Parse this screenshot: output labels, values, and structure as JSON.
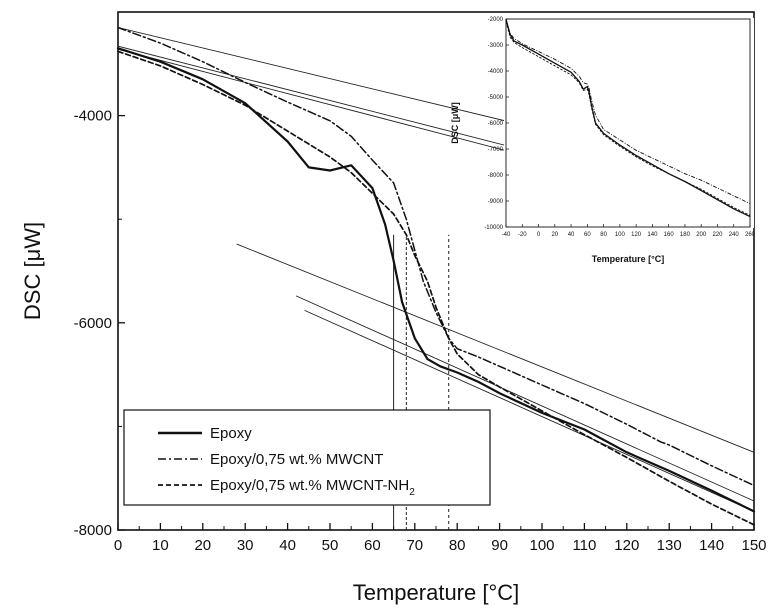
{
  "chart_data": [
    {
      "type": "line",
      "title": "",
      "xlabel": "Temperature [°C]",
      "ylabel": "DSC [μW]",
      "xlim": [
        0,
        150
      ],
      "ylim": [
        -8000,
        -3000
      ],
      "x_ticks": [
        "0",
        "10",
        "20",
        "30",
        "40",
        "50",
        "60",
        "70",
        "80",
        "90",
        "100",
        "110",
        "120",
        "130",
        "140",
        "150"
      ],
      "y_ticks": [
        "-4000",
        "-6000",
        "-8000"
      ],
      "grid": false,
      "legend_position": "bottom-left",
      "series": [
        {
          "name": "Epoxy",
          "style": "solid",
          "x": [
            0,
            10,
            20,
            30,
            40,
            45,
            50,
            55,
            60,
            63,
            65,
            67,
            70,
            73,
            76,
            80,
            85,
            90,
            100,
            110,
            120,
            130,
            140,
            150
          ],
          "y": [
            -3350,
            -3480,
            -3650,
            -3880,
            -4250,
            -4500,
            -4530,
            -4480,
            -4700,
            -5050,
            -5400,
            -5800,
            -6150,
            -6350,
            -6420,
            -6480,
            -6570,
            -6680,
            -6870,
            -7030,
            -7250,
            -7430,
            -7620,
            -7820
          ]
        },
        {
          "name": "Epoxy/0,75 wt.% MWCNT",
          "style": "dash-dot",
          "x": [
            0,
            10,
            20,
            30,
            40,
            50,
            55,
            60,
            65,
            68,
            70,
            72,
            75,
            78,
            80,
            85,
            90,
            100,
            110,
            120,
            128,
            130,
            140,
            150
          ],
          "y": [
            -3150,
            -3300,
            -3480,
            -3680,
            -3870,
            -4050,
            -4200,
            -4430,
            -4650,
            -5000,
            -5300,
            -5600,
            -5900,
            -6150,
            -6250,
            -6330,
            -6420,
            -6600,
            -6780,
            -6980,
            -7150,
            -7180,
            -7380,
            -7570
          ]
        },
        {
          "name": "Epoxy/0,75 wt.% MWCNT-NH2",
          "style": "dashed",
          "x": [
            0,
            10,
            20,
            30,
            40,
            50,
            55,
            60,
            65,
            68,
            70,
            73,
            75,
            78,
            80,
            85,
            90,
            100,
            110,
            120,
            130,
            140,
            150
          ],
          "y": [
            -3380,
            -3520,
            -3700,
            -3900,
            -4150,
            -4400,
            -4550,
            -4750,
            -4950,
            -5150,
            -5350,
            -5600,
            -5850,
            -6150,
            -6300,
            -6500,
            -6620,
            -6850,
            -7080,
            -7300,
            -7530,
            -7750,
            -7950
          ]
        }
      ],
      "tangent_lines": [
        {
          "x": [
            0,
            145
          ],
          "y": [
            -3330,
            -4850
          ]
        },
        {
          "x": [
            0,
            145
          ],
          "y": [
            -3150,
            -4580
          ]
        },
        {
          "x": [
            0,
            145
          ],
          "y": [
            -3360,
            -4910
          ]
        },
        {
          "x": [
            28,
            150
          ],
          "y": [
            -5240,
            -7250
          ]
        },
        {
          "x": [
            42,
            150
          ],
          "y": [
            -5740,
            -7720
          ]
        },
        {
          "x": [
            44,
            150
          ],
          "y": [
            -5880,
            -7820
          ]
        }
      ],
      "vertical_markers": [
        65,
        68,
        78
      ],
      "legend": {
        "items": [
          {
            "label": "Epoxy",
            "style": "solid"
          },
          {
            "label": "Epoxy/0,75 wt.% MWCNT",
            "style": "dash-dot"
          },
          {
            "label_main": "Epoxy/0,75 wt.% MWCNT-NH",
            "label_sub": "2",
            "style": "dashed"
          }
        ]
      }
    },
    {
      "type": "line",
      "title": "",
      "xlabel": "Temperature [°C]",
      "ylabel": "DSC [μW]",
      "xlim": [
        -40,
        260
      ],
      "ylim": [
        -10000,
        -2000
      ],
      "x_ticks": [
        "-40",
        "-20",
        "0",
        "20",
        "40",
        "60",
        "80",
        "100",
        "120",
        "140",
        "160",
        "180",
        "200",
        "220",
        "240",
        "260"
      ],
      "y_ticks": [
        "-2000",
        "-3000",
        "-4000",
        "-5000",
        "-6000",
        "-7000",
        "-8000",
        "-9000",
        "-10000"
      ],
      "series": [
        {
          "name": "Epoxy",
          "style": "solid",
          "x": [
            -40,
            -35,
            -30,
            -20,
            0,
            20,
            40,
            50,
            55,
            60,
            62,
            65,
            70,
            80,
            100,
            120,
            140,
            160,
            180,
            200,
            220,
            240,
            260
          ],
          "y": [
            -2000,
            -2600,
            -2850,
            -3000,
            -3350,
            -3700,
            -4050,
            -4400,
            -4700,
            -4600,
            -4800,
            -5300,
            -6000,
            -6400,
            -6850,
            -7250,
            -7600,
            -7950,
            -8250,
            -8600,
            -8950,
            -9300,
            -9600
          ]
        },
        {
          "name": "Epoxy/0,75 wt.% MWCNT",
          "style": "dash-dot",
          "x": [
            -40,
            -35,
            -30,
            -20,
            0,
            20,
            40,
            50,
            55,
            60,
            62,
            65,
            70,
            80,
            100,
            120,
            140,
            160,
            180,
            200,
            220,
            240,
            260
          ],
          "y": [
            -2050,
            -2550,
            -2750,
            -2950,
            -3250,
            -3550,
            -3900,
            -4200,
            -4450,
            -4500,
            -4650,
            -5100,
            -5700,
            -6250,
            -6650,
            -7050,
            -7350,
            -7650,
            -7950,
            -8200,
            -8500,
            -8800,
            -9100
          ]
        },
        {
          "name": "Epoxy/0,75 wt.% MWCNT-NH2",
          "style": "dashed",
          "x": [
            -40,
            -35,
            -30,
            -20,
            0,
            20,
            40,
            50,
            55,
            60,
            62,
            65,
            70,
            80,
            100,
            120,
            140,
            160,
            180,
            200,
            220,
            240,
            260
          ],
          "y": [
            -2100,
            -2700,
            -2900,
            -3100,
            -3450,
            -3800,
            -4150,
            -4450,
            -4750,
            -4700,
            -4900,
            -5400,
            -6050,
            -6450,
            -6900,
            -7300,
            -7650,
            -7950,
            -8250,
            -8550,
            -8900,
            -9250,
            -9550
          ]
        }
      ]
    }
  ]
}
